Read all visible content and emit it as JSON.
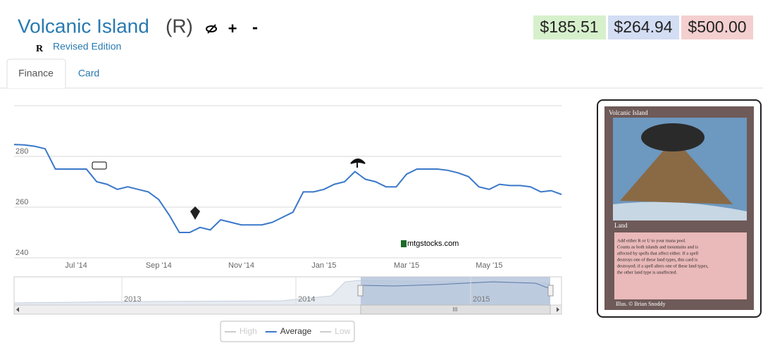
{
  "header": {
    "title": "Volcanic Island",
    "rarity": "(R)",
    "add": "+",
    "remove": "-",
    "set_symbol": "R",
    "set_name": "Revised Edition"
  },
  "prices": [
    "$185.51",
    "$264.94",
    "$500.00"
  ],
  "tabs": [
    "Finance",
    "Card"
  ],
  "chart_data": {
    "type": "line",
    "categories": [
      null,
      null,
      null,
      null,
      null,
      null,
      "Jul '14",
      null,
      null,
      null,
      null,
      null,
      null,
      null,
      "Sep '14",
      null,
      null,
      null,
      null,
      null,
      null,
      null,
      "Nov '14",
      null,
      null,
      null,
      null,
      null,
      null,
      null,
      "Jan '15",
      null,
      null,
      null,
      null,
      null,
      null,
      null,
      "Mar '15",
      null,
      null,
      null,
      null,
      null,
      null,
      null,
      "May '15",
      null,
      null,
      null,
      null,
      null,
      null,
      null
    ],
    "series": [
      {
        "name": "High",
        "color": "#cccccc",
        "visible": false,
        "values": null
      },
      {
        "name": "Average",
        "color": "#3a78c9",
        "visible": true,
        "values": [
          284.7,
          284.5,
          284,
          283,
          275,
          275,
          275,
          275,
          270,
          269,
          267,
          268,
          267,
          266,
          263,
          257,
          250,
          250,
          252,
          251,
          255,
          254,
          253,
          253,
          253,
          254,
          256,
          258,
          266,
          266,
          267,
          269,
          270,
          274,
          271,
          270,
          268,
          268,
          273,
          275,
          275,
          275,
          274.5,
          273.5,
          272,
          268,
          267,
          269,
          268.5,
          268.5,
          268,
          266,
          266.5,
          265
        ]
      },
      {
        "name": "Low",
        "color": "#cccccc",
        "visible": false,
        "values": null
      }
    ],
    "ylim": [
      240,
      300
    ],
    "yticks": [
      240,
      260,
      280
    ],
    "grid": true,
    "watermark": "mtgstocks.com",
    "navigator_labels": [
      "2013",
      "2014",
      "2015"
    ],
    "scrollbar_grip": "III"
  },
  "card": {
    "name": "Volcanic Island",
    "type_line": "Land",
    "rules": [
      "Add either R or U to your mana pool.",
      "Counts as both islands and mountains and is",
      "affected by spells that affect either. If a spell",
      "destroys one of these land types, this card is",
      "destroyed; if a spell alters one of these land types,",
      "the other land type is unaffected."
    ],
    "artist": "Illus. © Brian Snoddy"
  }
}
